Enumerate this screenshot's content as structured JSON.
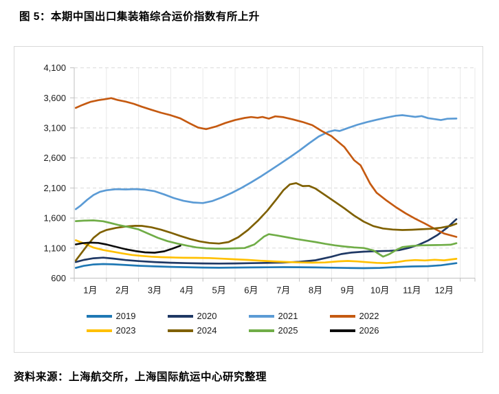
{
  "page": {
    "title": "图 5：本期中国出口集装箱综合运价指数有所上升",
    "source_note": "资料来源：上海航交所，上海国际航运中心研究整理"
  },
  "chart_data": {
    "type": "line",
    "title": "",
    "x_axis": {
      "labels": [
        "1月",
        "2月",
        "3月",
        "4月",
        "5月",
        "6月",
        "7月",
        "8月",
        "9月",
        "10月",
        "11月",
        "12月"
      ],
      "placement": "labels centered between month tick marks"
    },
    "y_axis": {
      "min": 600,
      "max": 4100,
      "tick_interval": 500,
      "tick_labels": [
        "600",
        "1,100",
        "1,600",
        "2,100",
        "2,600",
        "3,100",
        "3,600",
        "4,100"
      ]
    },
    "grid": {
      "horizontal": "dashed light gray",
      "vertical": "solid very light gray at month boundaries"
    },
    "legend_position": "bottom, two rows of four",
    "colors": {
      "grid_dashed": "#d9d9d9",
      "grid_vertical": "#e9e9e9",
      "axis": "#bfbfbf",
      "label_text": "#1a1a1a"
    },
    "series": [
      {
        "name": "2019",
        "color": "#1f78b4",
        "points": [
          [
            1.05,
            770
          ],
          [
            1.3,
            805
          ],
          [
            1.6,
            828
          ],
          [
            1.9,
            835
          ],
          [
            2.2,
            830
          ],
          [
            2.6,
            818
          ],
          [
            3.0,
            806
          ],
          [
            3.5,
            796
          ],
          [
            4.0,
            788
          ],
          [
            4.5,
            782
          ],
          [
            5.0,
            776
          ],
          [
            5.5,
            773
          ],
          [
            6.0,
            776
          ],
          [
            6.5,
            779
          ],
          [
            7.0,
            781
          ],
          [
            7.5,
            783
          ],
          [
            8.0,
            782
          ],
          [
            8.5,
            779
          ],
          [
            9.0,
            774
          ],
          [
            9.5,
            769
          ],
          [
            10.0,
            766
          ],
          [
            10.5,
            771
          ],
          [
            11.0,
            784
          ],
          [
            11.5,
            794
          ],
          [
            12.0,
            799
          ],
          [
            12.4,
            814
          ],
          [
            12.88,
            849
          ]
        ]
      },
      {
        "name": "2020",
        "color": "#1f3864",
        "points": [
          [
            1.05,
            868
          ],
          [
            1.3,
            903
          ],
          [
            1.6,
            931
          ],
          [
            1.9,
            941
          ],
          [
            2.2,
            926
          ],
          [
            2.6,
            901
          ],
          [
            3.0,
            884
          ],
          [
            3.5,
            868
          ],
          [
            4.0,
            856
          ],
          [
            4.5,
            849
          ],
          [
            5.0,
            845
          ],
          [
            5.5,
            843
          ],
          [
            6.0,
            845
          ],
          [
            6.5,
            849
          ],
          [
            7.0,
            854
          ],
          [
            7.5,
            860
          ],
          [
            8.0,
            872
          ],
          [
            8.5,
            898
          ],
          [
            9.0,
            957
          ],
          [
            9.3,
            1001
          ],
          [
            9.6,
            1024
          ],
          [
            10.0,
            1040
          ],
          [
            10.4,
            1049
          ],
          [
            10.8,
            1054
          ],
          [
            11.1,
            1066
          ],
          [
            11.4,
            1102
          ],
          [
            11.7,
            1154
          ],
          [
            12.0,
            1226
          ],
          [
            12.3,
            1320
          ],
          [
            12.6,
            1442
          ],
          [
            12.88,
            1581
          ]
        ]
      },
      {
        "name": "2021",
        "color": "#5b9bd5",
        "points": [
          [
            1.05,
            1748
          ],
          [
            1.2,
            1808
          ],
          [
            1.4,
            1902
          ],
          [
            1.6,
            1983
          ],
          [
            1.8,
            2037
          ],
          [
            2.0,
            2062
          ],
          [
            2.3,
            2081
          ],
          [
            2.6,
            2076
          ],
          [
            2.9,
            2082
          ],
          [
            3.2,
            2071
          ],
          [
            3.5,
            2046
          ],
          [
            3.8,
            1992
          ],
          [
            4.1,
            1932
          ],
          [
            4.4,
            1886
          ],
          [
            4.7,
            1859
          ],
          [
            5.0,
            1849
          ],
          [
            5.3,
            1884
          ],
          [
            5.6,
            1946
          ],
          [
            5.9,
            2019
          ],
          [
            6.2,
            2102
          ],
          [
            6.5,
            2194
          ],
          [
            6.8,
            2291
          ],
          [
            7.1,
            2396
          ],
          [
            7.4,
            2502
          ],
          [
            7.7,
            2612
          ],
          [
            8.0,
            2722
          ],
          [
            8.3,
            2843
          ],
          [
            8.6,
            2957
          ],
          [
            8.9,
            3035
          ],
          [
            9.1,
            3061
          ],
          [
            9.25,
            3048
          ],
          [
            9.5,
            3097
          ],
          [
            9.8,
            3152
          ],
          [
            10.1,
            3196
          ],
          [
            10.4,
            3235
          ],
          [
            10.7,
            3271
          ],
          [
            11.0,
            3302
          ],
          [
            11.2,
            3312
          ],
          [
            11.4,
            3298
          ],
          [
            11.6,
            3283
          ],
          [
            11.8,
            3297
          ],
          [
            12.0,
            3263
          ],
          [
            12.2,
            3247
          ],
          [
            12.4,
            3231
          ],
          [
            12.6,
            3252
          ],
          [
            12.88,
            3256
          ]
        ]
      },
      {
        "name": "2022",
        "color": "#c55a11",
        "points": [
          [
            1.05,
            3433
          ],
          [
            1.25,
            3481
          ],
          [
            1.5,
            3532
          ],
          [
            1.75,
            3561
          ],
          [
            2.0,
            3582
          ],
          [
            2.15,
            3595
          ],
          [
            2.35,
            3564
          ],
          [
            2.6,
            3537
          ],
          [
            2.85,
            3501
          ],
          [
            3.1,
            3452
          ],
          [
            3.4,
            3401
          ],
          [
            3.7,
            3352
          ],
          [
            4.0,
            3311
          ],
          [
            4.3,
            3258
          ],
          [
            4.6,
            3172
          ],
          [
            4.85,
            3106
          ],
          [
            5.1,
            3079
          ],
          [
            5.4,
            3122
          ],
          [
            5.7,
            3182
          ],
          [
            6.0,
            3231
          ],
          [
            6.3,
            3266
          ],
          [
            6.5,
            3281
          ],
          [
            6.7,
            3268
          ],
          [
            6.85,
            3282
          ],
          [
            7.05,
            3254
          ],
          [
            7.25,
            3292
          ],
          [
            7.5,
            3279
          ],
          [
            7.8,
            3241
          ],
          [
            8.1,
            3198
          ],
          [
            8.4,
            3146
          ],
          [
            8.7,
            3046
          ],
          [
            9.0,
            2962
          ],
          [
            9.4,
            2781
          ],
          [
            9.7,
            2562
          ],
          [
            9.9,
            2479
          ],
          [
            10.2,
            2171
          ],
          [
            10.4,
            2021
          ],
          [
            10.68,
            1903
          ],
          [
            11.0,
            1781
          ],
          [
            11.3,
            1679
          ],
          [
            11.6,
            1588
          ],
          [
            11.9,
            1508
          ],
          [
            12.2,
            1421
          ],
          [
            12.5,
            1341
          ],
          [
            12.88,
            1286
          ]
        ]
      },
      {
        "name": "2023",
        "color": "#ffc000",
        "points": [
          [
            1.05,
            1231
          ],
          [
            1.3,
            1178
          ],
          [
            1.6,
            1108
          ],
          [
            1.9,
            1068
          ],
          [
            2.2,
            1039
          ],
          [
            2.5,
            1011
          ],
          [
            2.8,
            986
          ],
          [
            3.1,
            969
          ],
          [
            3.4,
            957
          ],
          [
            3.7,
            949
          ],
          [
            4.0,
            944
          ],
          [
            4.4,
            939
          ],
          [
            4.8,
            937
          ],
          [
            5.2,
            934
          ],
          [
            5.6,
            924
          ],
          [
            6.0,
            914
          ],
          [
            6.4,
            903
          ],
          [
            6.8,
            889
          ],
          [
            7.2,
            879
          ],
          [
            7.6,
            869
          ],
          [
            8.0,
            861
          ],
          [
            8.4,
            857
          ],
          [
            8.8,
            861
          ],
          [
            9.2,
            879
          ],
          [
            9.5,
            886
          ],
          [
            9.8,
            878
          ],
          [
            10.1,
            866
          ],
          [
            10.4,
            854
          ],
          [
            10.7,
            849
          ],
          [
            11.0,
            864
          ],
          [
            11.3,
            889
          ],
          [
            11.6,
            901
          ],
          [
            11.9,
            894
          ],
          [
            12.2,
            906
          ],
          [
            12.5,
            896
          ],
          [
            12.88,
            921
          ]
        ]
      },
      {
        "name": "2024",
        "color": "#7f6000",
        "points": [
          [
            1.05,
            894
          ],
          [
            1.2,
            1002
          ],
          [
            1.4,
            1141
          ],
          [
            1.6,
            1272
          ],
          [
            1.8,
            1356
          ],
          [
            2.0,
            1401
          ],
          [
            2.3,
            1436
          ],
          [
            2.6,
            1459
          ],
          [
            2.9,
            1471
          ],
          [
            3.1,
            1469
          ],
          [
            3.4,
            1446
          ],
          [
            3.7,
            1406
          ],
          [
            4.0,
            1356
          ],
          [
            4.3,
            1301
          ],
          [
            4.6,
            1251
          ],
          [
            4.9,
            1211
          ],
          [
            5.2,
            1186
          ],
          [
            5.5,
            1176
          ],
          [
            5.8,
            1201
          ],
          [
            6.1,
            1281
          ],
          [
            6.4,
            1401
          ],
          [
            6.7,
            1551
          ],
          [
            7.0,
            1721
          ],
          [
            7.3,
            1921
          ],
          [
            7.5,
            2061
          ],
          [
            7.7,
            2159
          ],
          [
            7.9,
            2181
          ],
          [
            8.1,
            2132
          ],
          [
            8.3,
            2136
          ],
          [
            8.5,
            2091
          ],
          [
            8.8,
            1981
          ],
          [
            9.1,
            1871
          ],
          [
            9.4,
            1761
          ],
          [
            9.7,
            1641
          ],
          [
            10.0,
            1541
          ],
          [
            10.3,
            1466
          ],
          [
            10.6,
            1426
          ],
          [
            10.9,
            1409
          ],
          [
            11.2,
            1401
          ],
          [
            11.5,
            1406
          ],
          [
            11.8,
            1414
          ],
          [
            12.1,
            1421
          ],
          [
            12.4,
            1439
          ],
          [
            12.7,
            1471
          ],
          [
            12.88,
            1506
          ]
        ]
      },
      {
        "name": "2025",
        "color": "#70ad47",
        "points": [
          [
            1.05,
            1549
          ],
          [
            1.3,
            1556
          ],
          [
            1.6,
            1561
          ],
          [
            1.9,
            1546
          ],
          [
            2.1,
            1521
          ],
          [
            2.4,
            1481
          ],
          [
            2.7,
            1449
          ],
          [
            3.0,
            1411
          ],
          [
            3.3,
            1341
          ],
          [
            3.6,
            1271
          ],
          [
            3.9,
            1216
          ],
          [
            4.2,
            1176
          ],
          [
            4.5,
            1141
          ],
          [
            4.8,
            1111
          ],
          [
            5.1,
            1096
          ],
          [
            5.4,
            1091
          ],
          [
            5.7,
            1091
          ],
          [
            6.0,
            1096
          ],
          [
            6.3,
            1101
          ],
          [
            6.6,
            1161
          ],
          [
            6.9,
            1291
          ],
          [
            7.05,
            1331
          ],
          [
            7.3,
            1311
          ],
          [
            7.6,
            1281
          ],
          [
            7.9,
            1251
          ],
          [
            8.2,
            1226
          ],
          [
            8.5,
            1201
          ],
          [
            8.8,
            1171
          ],
          [
            9.1,
            1146
          ],
          [
            9.4,
            1126
          ],
          [
            9.7,
            1111
          ],
          [
            10.0,
            1101
          ],
          [
            10.3,
            1061
          ],
          [
            10.6,
            958
          ],
          [
            10.8,
            1001
          ],
          [
            11.0,
            1066
          ],
          [
            11.2,
            1116
          ],
          [
            11.5,
            1136
          ],
          [
            11.8,
            1146
          ],
          [
            12.1,
            1149
          ],
          [
            12.4,
            1151
          ],
          [
            12.7,
            1156
          ],
          [
            12.88,
            1181
          ]
        ]
      },
      {
        "name": "2026",
        "color": "#0d0d0d",
        "points": [
          [
            1.05,
            1162
          ],
          [
            1.25,
            1181
          ],
          [
            1.5,
            1191
          ],
          [
            1.75,
            1186
          ],
          [
            2.0,
            1161
          ],
          [
            2.3,
            1121
          ],
          [
            2.6,
            1081
          ],
          [
            2.9,
            1051
          ],
          [
            3.2,
            1029
          ],
          [
            3.5,
            1023
          ],
          [
            3.8,
            1046
          ],
          [
            4.05,
            1091
          ],
          [
            4.3,
            1139
          ]
        ]
      }
    ]
  }
}
